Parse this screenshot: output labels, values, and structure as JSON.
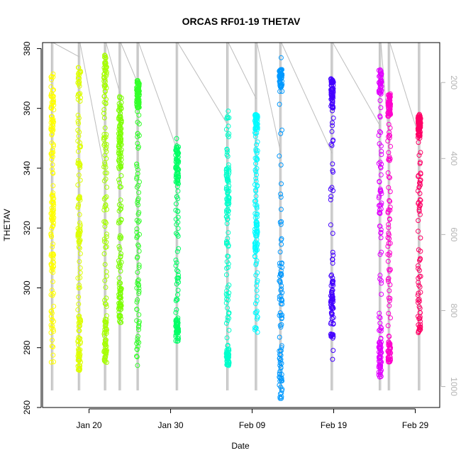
{
  "chart_data": {
    "type": "scatter",
    "title": "ORCAS RF01-19 THETAV",
    "xlabel": "Date",
    "ylabel": "THETAV",
    "x_ticks": [
      "Jan 20",
      "Jan 30",
      "Feb 09",
      "Feb 19",
      "Feb 29"
    ],
    "x_tick_days": [
      20,
      30,
      40,
      50,
      60
    ],
    "xlim_days": [
      14.3,
      63.0
    ],
    "ylim": [
      260,
      382
    ],
    "y_ticks": [
      260,
      280,
      300,
      320,
      340,
      360,
      380
    ],
    "right_axis": {
      "ticks": [
        200,
        400,
        600,
        800,
        1000
      ],
      "ylim": [
        1055,
        95
      ],
      "reversed": true,
      "color": "#b4b4b4"
    },
    "grid": false,
    "legend": "none",
    "series": [
      {
        "day": 15.5,
        "color": "#ffff00",
        "range": [
          275,
          375
        ],
        "clusters": [
          [
            352,
            365,
            0.2
          ],
          [
            318,
            330,
            0.15
          ],
          [
            305,
            312,
            0.1
          ]
        ],
        "press": [
          [
            1010,
            240
          ]
        ]
      },
      {
        "day": 18.8,
        "color": "#ddff00",
        "range": [
          272,
          374
        ],
        "clusters": [
          [
            272,
            290,
            0.3
          ],
          [
            315,
            322,
            0.15
          ],
          [
            363,
            374,
            0.15
          ]
        ],
        "press": [
          [
            1010,
            150
          ]
        ]
      },
      {
        "day": 22.0,
        "color": "#a6ff00",
        "range": [
          275,
          378
        ],
        "clusters": [
          [
            275,
            290,
            0.25
          ],
          [
            365,
            378,
            0.25
          ]
        ],
        "press": [
          [
            1010,
            80
          ]
        ]
      },
      {
        "day": 23.8,
        "color": "#7cff00",
        "range": [
          288,
          365
        ],
        "clusters": [
          [
            288,
            300,
            0.2
          ],
          [
            340,
            365,
            0.3
          ]
        ],
        "press": [
          [
            1010,
            80
          ]
        ]
      },
      {
        "day": 26.0,
        "color": "#33ff2a",
        "range": [
          272,
          370
        ],
        "clusters": [
          [
            360,
            370,
            0.45
          ]
        ],
        "press": [
          [
            1010,
            80
          ]
        ]
      },
      {
        "day": 30.8,
        "color": "#00ff66",
        "range": [
          282,
          350
        ],
        "clusters": [
          [
            282,
            290,
            0.25
          ],
          [
            335,
            347,
            0.3
          ]
        ],
        "press": [
          [
            1010,
            80
          ]
        ]
      },
      {
        "day": 37.0,
        "color": "#00ffcc",
        "range": [
          274,
          360
        ],
        "clusters": [
          [
            274,
            280,
            0.2
          ],
          [
            325,
            340,
            0.2
          ]
        ],
        "press": [
          [
            1010,
            80
          ]
        ]
      },
      {
        "day": 40.5,
        "color": "#00fbff",
        "range": [
          285,
          358
        ],
        "clusters": [
          [
            353,
            358,
            0.3
          ],
          [
            312,
            322,
            0.15
          ]
        ],
        "press": [
          [
            1010,
            80
          ]
        ]
      },
      {
        "day": 43.5,
        "color": "#0099ff",
        "range": [
          263,
          377
        ],
        "clusters": [
          [
            367,
            373,
            0.35
          ],
          [
            263,
            280,
            0.2
          ],
          [
            295,
            310,
            0.15
          ]
        ],
        "press": [
          [
            1010,
            80
          ]
        ]
      },
      {
        "day": 49.8,
        "color": "#4400ff",
        "range": [
          275,
          370
        ],
        "clusters": [
          [
            360,
            370,
            0.4
          ],
          [
            283,
            305,
            0.25
          ]
        ],
        "press": [
          [
            1010,
            80
          ]
        ]
      },
      {
        "day": 55.7,
        "color": "#e100ff",
        "range": [
          270,
          373
        ],
        "clusters": [
          [
            365,
            373,
            0.25
          ],
          [
            270,
            282,
            0.2
          ]
        ],
        "press": [
          [
            1010,
            80
          ]
        ]
      },
      {
        "day": 56.8,
        "color": "#ff00cc",
        "range": [
          275,
          365
        ],
        "clusters": [
          [
            357,
            365,
            0.3
          ],
          [
            275,
            282,
            0.2
          ]
        ],
        "press": [
          [
            1010,
            80
          ]
        ]
      },
      {
        "day": 60.5,
        "color": "#ff0066",
        "range": [
          285,
          358
        ],
        "clusters": [
          [
            350,
            358,
            0.4
          ],
          [
            285,
            292,
            0.15
          ]
        ],
        "press": [
          [
            1010,
            80
          ]
        ]
      }
    ]
  }
}
